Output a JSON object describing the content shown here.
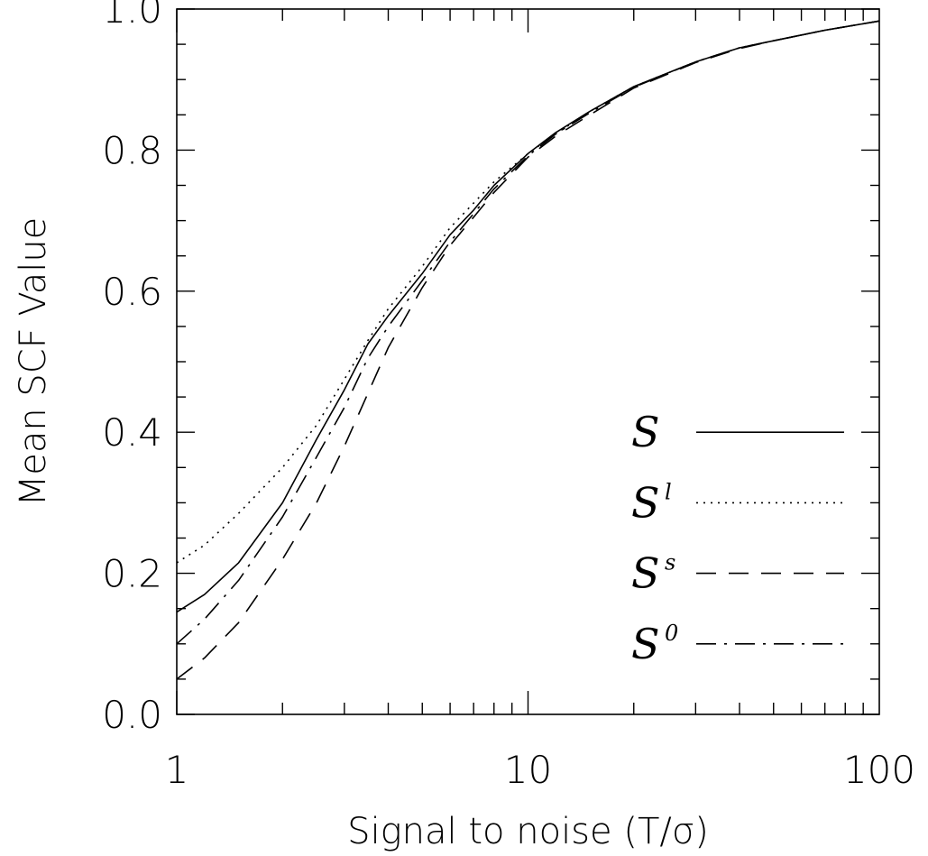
{
  "chart_data": {
    "type": "line",
    "xlabel": "Signal to noise (T/σ)",
    "ylabel": "Mean SCF Value",
    "xscale": "log",
    "xlim": [
      1,
      100
    ],
    "ylim": [
      0.0,
      1.0
    ],
    "xticks": [
      {
        "value": 1,
        "label": "1"
      },
      {
        "value": 10,
        "label": "10"
      },
      {
        "value": 100,
        "label": "100"
      }
    ],
    "yticks": [
      {
        "value": 0.0,
        "label": "0.0"
      },
      {
        "value": 0.2,
        "label": "0.2"
      },
      {
        "value": 0.4,
        "label": "0.4"
      },
      {
        "value": 0.6,
        "label": "0.6"
      },
      {
        "value": 0.8,
        "label": "0.8"
      },
      {
        "value": 1.0,
        "label": "1.0"
      }
    ],
    "grid": false,
    "legend_position": "bottom-right",
    "series": [
      {
        "name": "S",
        "base": "S",
        "sup": "",
        "dash": "solid",
        "x": [
          1,
          1.2,
          1.5,
          2,
          2.5,
          3,
          3.5,
          4,
          5,
          6,
          7,
          8,
          10,
          12,
          15,
          20,
          30,
          40,
          50,
          70,
          100
        ],
        "y": [
          0.145,
          0.17,
          0.215,
          0.3,
          0.39,
          0.46,
          0.525,
          0.565,
          0.625,
          0.68,
          0.715,
          0.75,
          0.795,
          0.825,
          0.855,
          0.89,
          0.925,
          0.945,
          0.955,
          0.97,
          0.983
        ]
      },
      {
        "name": "Sl",
        "base": "S",
        "sup": "l",
        "dash": "dotted",
        "x": [
          1,
          1.2,
          1.5,
          2,
          2.5,
          3,
          3.5,
          4,
          5,
          6,
          7,
          8,
          10,
          12,
          15,
          20,
          30,
          40,
          50,
          70,
          100
        ],
        "y": [
          0.215,
          0.24,
          0.285,
          0.35,
          0.41,
          0.475,
          0.53,
          0.575,
          0.635,
          0.69,
          0.725,
          0.755,
          0.795,
          0.823,
          0.855,
          0.89,
          0.925,
          0.945,
          0.955,
          0.97,
          0.983
        ]
      },
      {
        "name": "Ss",
        "base": "S",
        "sup": "s",
        "dash": "dashed",
        "x": [
          1,
          1.2,
          1.5,
          2,
          2.5,
          3,
          3.5,
          4,
          5,
          6,
          7,
          8,
          10,
          12,
          15,
          20,
          30,
          40,
          50,
          70,
          100
        ],
        "y": [
          0.05,
          0.08,
          0.13,
          0.22,
          0.3,
          0.38,
          0.455,
          0.52,
          0.605,
          0.665,
          0.705,
          0.74,
          0.79,
          0.82,
          0.85,
          0.888,
          0.924,
          0.944,
          0.955,
          0.97,
          0.983
        ]
      },
      {
        "name": "S0",
        "base": "S",
        "sup": "0",
        "dash": "dashdot",
        "x": [
          1,
          1.2,
          1.5,
          2,
          2.5,
          3,
          3.5,
          4,
          5,
          6,
          7,
          8,
          10,
          12,
          15,
          20,
          30,
          40,
          50,
          70,
          100
        ],
        "y": [
          0.1,
          0.135,
          0.19,
          0.28,
          0.365,
          0.435,
          0.505,
          0.55,
          0.615,
          0.67,
          0.71,
          0.745,
          0.792,
          0.823,
          0.853,
          0.889,
          0.925,
          0.945,
          0.955,
          0.97,
          0.983
        ]
      }
    ]
  }
}
